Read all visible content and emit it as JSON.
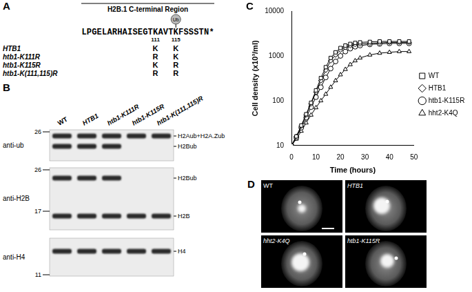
{
  "panel_labels": [
    "A",
    "B",
    "C",
    "D"
  ],
  "panel_a": {
    "title": "H2B.1 C-terminal Region",
    "sequence": "LPGELARHAISEGTKAVTKFSSSTN*",
    "sites": [
      111,
      115
    ],
    "modification": "Ub",
    "modified_site": 115,
    "rows": [
      {
        "name": "HTB1",
        "residues": [
          "K",
          "K"
        ]
      },
      {
        "name": "htb1-K111R",
        "residues": [
          "R",
          "K"
        ]
      },
      {
        "name": "htb1-K115R",
        "residues": [
          "K",
          "R"
        ]
      },
      {
        "name": "htb1-K(111,115)R",
        "residues": [
          "R",
          "R"
        ]
      }
    ]
  },
  "panel_b": {
    "lanes": [
      "WT",
      "HTB1",
      "htb1-K111R",
      "htb1-K115R",
      "htb1-K(111,115)R"
    ],
    "blots": [
      {
        "antibody": "anti-ub",
        "markers": [
          26
        ],
        "bands": [
          {
            "label": "H2Aub+H2A.Zub",
            "present": [
              true,
              true,
              true,
              true,
              true
            ]
          },
          {
            "label": "H2Bub",
            "present": [
              true,
              true,
              true,
              false,
              false
            ]
          }
        ]
      },
      {
        "antibody": "anti-H2B",
        "markers": [
          26,
          17
        ],
        "bands": [
          {
            "label": "H2Bub",
            "present": [
              true,
              true,
              true,
              false,
              false
            ]
          },
          {
            "label": "H2B",
            "present": [
              true,
              true,
              true,
              true,
              true
            ]
          }
        ]
      },
      {
        "antibody": "anti-H4",
        "markers": [
          11
        ],
        "bands": [
          {
            "label": "H4",
            "present": [
              true,
              true,
              true,
              true,
              true
            ]
          }
        ]
      }
    ]
  },
  "chart_data": {
    "type": "line",
    "xlabel": "Time (hours)",
    "ylabel": "Cell density (x10³/ml)",
    "log": "y",
    "grid": false,
    "legend": "right",
    "xlim": [
      0,
      50
    ],
    "xticks": [
      0,
      10,
      20,
      30,
      40,
      50
    ],
    "ylim": [
      10,
      10000
    ],
    "yticks": [
      10,
      100,
      1000,
      10000
    ],
    "x": [
      0,
      2,
      4,
      6,
      8,
      10,
      12,
      14,
      16,
      18,
      20,
      22,
      24,
      26,
      28,
      32,
      36,
      40,
      44,
      48
    ],
    "series": [
      {
        "name": "WT",
        "color": "#000000",
        "marker": "square",
        "values": [
          10,
          16,
          28,
          50,
          90,
          170,
          320,
          560,
          900,
          1200,
          1500,
          1700,
          1850,
          1950,
          2000,
          2050,
          2100,
          2100,
          2100,
          2100
        ]
      },
      {
        "name": "HTB1",
        "color": "#000000",
        "marker": "diamond",
        "values": [
          10,
          16,
          27,
          48,
          85,
          155,
          280,
          480,
          780,
          1050,
          1350,
          1550,
          1700,
          1800,
          1850,
          1900,
          1950,
          2000,
          2000,
          2000
        ]
      },
      {
        "name": "htb1-K115R",
        "color": "#000000",
        "marker": "circle",
        "values": [
          10,
          15,
          25,
          42,
          72,
          120,
          200,
          330,
          520,
          750,
          1000,
          1250,
          1450,
          1600,
          1700,
          1800,
          1850,
          1900,
          1900,
          1900
        ]
      },
      {
        "name": "hht2-K4Q",
        "color": "#000000",
        "marker": "triangle",
        "values": [
          10,
          14,
          21,
          32,
          48,
          70,
          100,
          140,
          200,
          280,
          380,
          500,
          640,
          780,
          900,
          1050,
          1150,
          1200,
          1250,
          1250
        ]
      }
    ]
  },
  "panel_d": {
    "images": [
      "WT",
      "HTB1",
      "hht2-K4Q",
      "htb1-K115R"
    ]
  }
}
